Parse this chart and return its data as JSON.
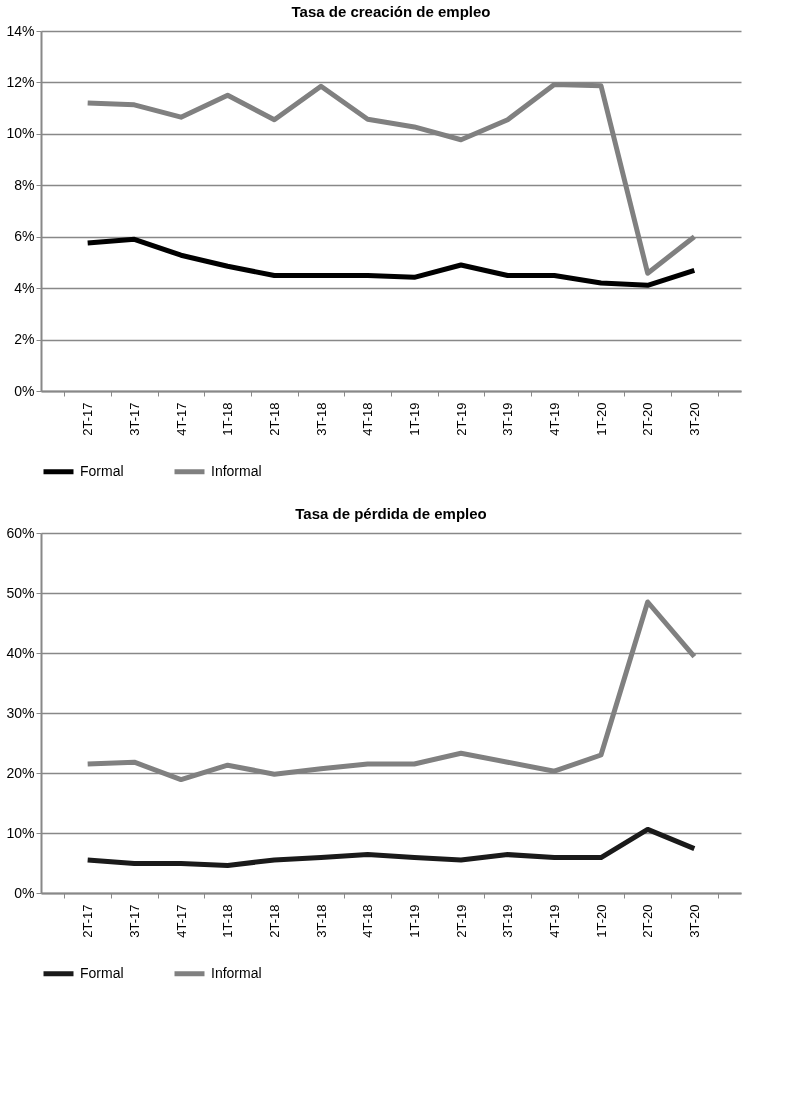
{
  "chart_data": [
    {
      "type": "line",
      "title": "Tasa de creación de empleo",
      "categories": [
        "2T-17",
        "3T-17",
        "4T-17",
        "1T-18",
        "2T-18",
        "3T-18",
        "4T-18",
        "1T-19",
        "2T-19",
        "3T-19",
        "4T-19",
        "1T-20",
        "2T-20",
        "3T-20"
      ],
      "series": [
        {
          "name": "Formal",
          "color": "#000000",
          "values": [
            5.76,
            5.9,
            5.28,
            4.85,
            4.49,
            4.49,
            4.49,
            4.42,
            4.9,
            4.49,
            4.49,
            4.2,
            4.11,
            4.69
          ]
        },
        {
          "name": "Informal",
          "color": "#808080",
          "values": [
            11.2,
            11.13,
            10.65,
            11.5,
            10.55,
            11.85,
            10.57,
            10.27,
            9.77,
            10.55,
            11.92,
            11.87,
            4.58,
            6.0
          ]
        }
      ],
      "ylim": [
        0,
        14
      ],
      "yticks": [
        {
          "value": 0,
          "label": "0%"
        },
        {
          "value": 2,
          "label": "2%"
        },
        {
          "value": 4,
          "label": "4%"
        },
        {
          "value": 6,
          "label": "6%"
        },
        {
          "value": 8,
          "label": "8%"
        },
        {
          "value": 10,
          "label": "10%"
        },
        {
          "value": 12,
          "label": "12%"
        },
        {
          "value": 14,
          "label": "14%"
        }
      ],
      "grid": "y",
      "legend": "bottom",
      "marker": "none",
      "line_style": "solid"
    },
    {
      "type": "line",
      "title": "Tasa de pérdida de empleo",
      "categories": [
        "2T-17",
        "3T-17",
        "4T-17",
        "1T-18",
        "2T-18",
        "3T-18",
        "4T-18",
        "1T-19",
        "2T-19",
        "3T-19",
        "4T-19",
        "1T-20",
        "2T-20",
        "3T-20"
      ],
      "series": [
        {
          "name": "Formal",
          "color": "#1a1a1a",
          "values": [
            5.5,
            4.9,
            4.9,
            4.6,
            5.5,
            5.9,
            6.4,
            5.9,
            5.5,
            6.4,
            5.9,
            5.9,
            10.6,
            7.4
          ]
        },
        {
          "name": "Informal",
          "color": "#808080",
          "values": [
            21.5,
            21.8,
            18.9,
            21.3,
            19.8,
            20.7,
            21.5,
            21.5,
            23.3,
            21.8,
            20.3,
            23.0,
            48.5,
            39.4
          ]
        }
      ],
      "ylim": [
        0,
        60
      ],
      "yticks": [
        {
          "value": 0,
          "label": "0%"
        },
        {
          "value": 10,
          "label": "10%"
        },
        {
          "value": 20,
          "label": "20%"
        },
        {
          "value": 30,
          "label": "30%"
        },
        {
          "value": 40,
          "label": "40%"
        },
        {
          "value": 50,
          "label": "50%"
        },
        {
          "value": 60,
          "label": "60%"
        }
      ],
      "grid": "y",
      "legend": "bottom",
      "marker": "none",
      "line_style": "solid"
    }
  ]
}
